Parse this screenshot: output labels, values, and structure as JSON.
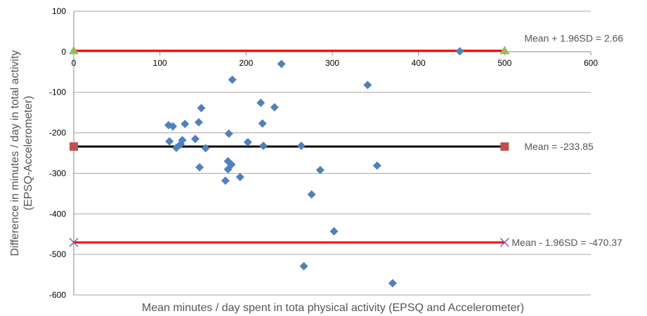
{
  "chart_data": {
    "type": "scatter",
    "title": "",
    "xlabel": "Mean minutes / day spent in tota physical activity (EPSQ and Accelerometer)",
    "ylabel_lines": [
      "Difference in minutes / day in total activity",
      "(EPSQ-Accelerometer)"
    ],
    "xlim": [
      0,
      600
    ],
    "ylim": [
      -600,
      100
    ],
    "x_ticks": [
      "0",
      "100",
      "200",
      "300",
      "400",
      "500",
      "600"
    ],
    "y_ticks": [
      "100",
      "0",
      "-100",
      "-200",
      "-300",
      "-400",
      "-500",
      "-600"
    ],
    "grid": "horizontal",
    "points": [
      {
        "x": 110,
        "y": -181
      },
      {
        "x": 111,
        "y": -221
      },
      {
        "x": 115,
        "y": -184
      },
      {
        "x": 119,
        "y": -237
      },
      {
        "x": 124,
        "y": -228
      },
      {
        "x": 126,
        "y": -218
      },
      {
        "x": 129,
        "y": -178
      },
      {
        "x": 141,
        "y": -215
      },
      {
        "x": 145,
        "y": -174
      },
      {
        "x": 146,
        "y": -285
      },
      {
        "x": 148,
        "y": -139
      },
      {
        "x": 153,
        "y": -238
      },
      {
        "x": 176,
        "y": -318
      },
      {
        "x": 179,
        "y": -270
      },
      {
        "x": 179,
        "y": -290
      },
      {
        "x": 180,
        "y": -202
      },
      {
        "x": 183,
        "y": -278
      },
      {
        "x": 184,
        "y": -69
      },
      {
        "x": 193,
        "y": -309
      },
      {
        "x": 202,
        "y": -223
      },
      {
        "x": 217,
        "y": -126
      },
      {
        "x": 219,
        "y": -177
      },
      {
        "x": 220,
        "y": -232
      },
      {
        "x": 233,
        "y": -137
      },
      {
        "x": 241,
        "y": -30
      },
      {
        "x": 264,
        "y": -232
      },
      {
        "x": 267,
        "y": -529
      },
      {
        "x": 276,
        "y": -352
      },
      {
        "x": 286,
        "y": -292
      },
      {
        "x": 302,
        "y": -443
      },
      {
        "x": 341,
        "y": -82
      },
      {
        "x": 352,
        "y": -281
      },
      {
        "x": 370,
        "y": -571
      },
      {
        "x": 448,
        "y": 1
      }
    ],
    "reference_lines": [
      {
        "label": "Mean + 1.96SD = 2.66",
        "y": 2.66,
        "x_range": [
          0,
          500
        ],
        "color": "#ff0000",
        "marker": "triangle",
        "marker_color": "#9bbb59"
      },
      {
        "label": "Mean = -233.85",
        "y": -233.85,
        "x_range": [
          0,
          500
        ],
        "color": "#000000",
        "marker": "square",
        "marker_color": "#c0504d"
      },
      {
        "label": "Mean - 1.96SD = -470.37",
        "y": -470.37,
        "x_range": [
          0,
          500
        ],
        "color": "#ff0000",
        "marker": "cross",
        "marker_color": "#7f5ba6"
      }
    ],
    "point_color": "#4f81bd"
  }
}
